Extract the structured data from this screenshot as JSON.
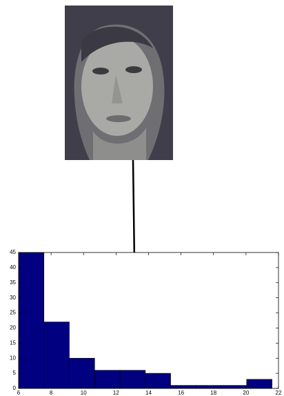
{
  "chart_data": {
    "type": "histogram",
    "bins": [
      6,
      7.56,
      9.12,
      10.68,
      12.24,
      13.8,
      15.36,
      16.92,
      18.48,
      20.04,
      21.6
    ],
    "values": [
      45,
      22,
      10,
      6,
      6,
      5,
      1,
      1,
      1,
      3
    ],
    "color": "#000080",
    "xlim": [
      6,
      22
    ],
    "xticks": [
      6,
      8,
      10,
      12,
      14,
      16,
      18,
      20,
      22
    ],
    "ylim": [
      0,
      45
    ],
    "yticks": [
      0,
      5,
      10,
      15,
      20,
      25,
      30,
      35,
      40,
      45
    ]
  }
}
